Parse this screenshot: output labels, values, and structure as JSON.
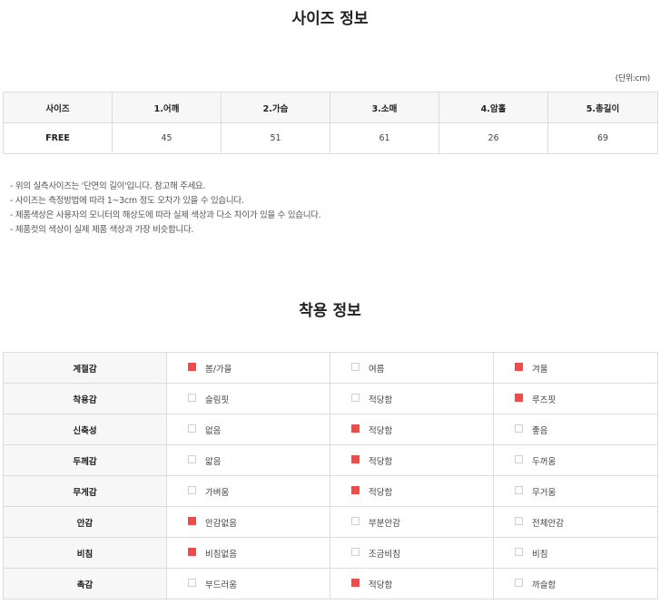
{
  "size_section": {
    "title": "사이즈 정보",
    "unit_note": "(단위:cm)",
    "headers": [
      "사이즈",
      "1.어깨",
      "2.가슴",
      "3.소매",
      "4.암홀",
      "5.총길이"
    ],
    "rows": [
      {
        "label": "FREE",
        "values": [
          "45",
          "51",
          "61",
          "26",
          "69"
        ]
      }
    ],
    "notes": [
      "- 위의 실측사이즈는 '단면의 길이'입니다. 참고해 주세요.",
      "- 사이즈는 측정방법에 따라 1~3cm 정도 오차가 있을 수 있습니다.",
      "- 제품색상은 사용자의 모니터의 해상도에 따라 실제 색상과 다소 차이가 있을 수 있습니다.",
      "- 제품컷의 색상이 실제 제품 색상과 가장 비슷합니다."
    ]
  },
  "fit_section": {
    "title": "착용 정보",
    "check_color": "#ef4b4b",
    "rows": [
      {
        "category": "계절감",
        "options": [
          {
            "label": "봄/가을",
            "checked": true
          },
          {
            "label": "여름",
            "checked": false
          },
          {
            "label": "겨울",
            "checked": true
          }
        ]
      },
      {
        "category": "착용감",
        "options": [
          {
            "label": "슬림핏",
            "checked": false
          },
          {
            "label": "적당함",
            "checked": false
          },
          {
            "label": "루즈핏",
            "checked": true
          }
        ]
      },
      {
        "category": "신축성",
        "options": [
          {
            "label": "없음",
            "checked": false
          },
          {
            "label": "적당함",
            "checked": true
          },
          {
            "label": "좋음",
            "checked": false
          }
        ]
      },
      {
        "category": "두께감",
        "options": [
          {
            "label": "얇음",
            "checked": false
          },
          {
            "label": "적당함",
            "checked": true
          },
          {
            "label": "두꺼움",
            "checked": false
          }
        ]
      },
      {
        "category": "무게감",
        "options": [
          {
            "label": "가벼움",
            "checked": false
          },
          {
            "label": "적당함",
            "checked": true
          },
          {
            "label": "무거움",
            "checked": false
          }
        ]
      },
      {
        "category": "안감",
        "options": [
          {
            "label": "안감없음",
            "checked": true
          },
          {
            "label": "부분안감",
            "checked": false
          },
          {
            "label": "전체안감",
            "checked": false
          }
        ]
      },
      {
        "category": "비침",
        "options": [
          {
            "label": "비침없음",
            "checked": true
          },
          {
            "label": "조금비침",
            "checked": false
          },
          {
            "label": "비침",
            "checked": false
          }
        ]
      },
      {
        "category": "촉감",
        "options": [
          {
            "label": "부드러움",
            "checked": false
          },
          {
            "label": "적당함",
            "checked": true
          },
          {
            "label": "까슬함",
            "checked": false
          }
        ]
      }
    ]
  }
}
